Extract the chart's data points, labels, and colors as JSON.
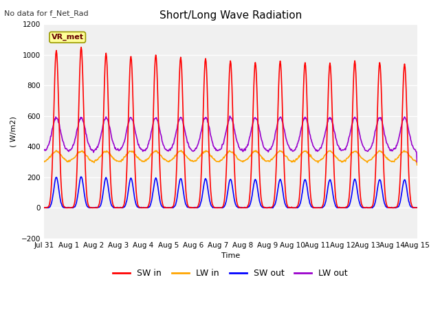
{
  "title": "Short/Long Wave Radiation",
  "top_left_text": "No data for f_Net_Rad",
  "ylabel": "( W/m2)",
  "xlabel": "Time",
  "ylim": [
    -200,
    1200
  ],
  "yticks": [
    -200,
    0,
    200,
    400,
    600,
    800,
    1000,
    1200
  ],
  "x_tick_labels": [
    "Jul 31",
    "Aug 1",
    "Aug 2",
    "Aug 3",
    "Aug 4",
    "Aug 5",
    "Aug 6",
    "Aug 7",
    "Aug 8",
    "Aug 9",
    "Aug 10",
    "Aug 11",
    "Aug 12",
    "Aug 13",
    "Aug 14",
    "Aug 15"
  ],
  "legend_entries": [
    "SW in",
    "LW in",
    "SW out",
    "LW out"
  ],
  "legend_colors": [
    "#ff0000",
    "#ffa500",
    "#0000ff",
    "#9900cc"
  ],
  "figure_bg": "#ffffff",
  "plot_bg": "#f0f0f0",
  "grid_color": "#ffffff",
  "vr_met_box_facecolor": "#ffff99",
  "vr_met_box_edgecolor": "#999900",
  "SW_in_color": "#ff0000",
  "LW_in_color": "#ffa500",
  "SW_out_color": "#0000ff",
  "LW_out_color": "#9900cc",
  "line_width": 1.2,
  "title_fontsize": 11,
  "label_fontsize": 8,
  "tick_fontsize": 7.5,
  "legend_fontsize": 9
}
